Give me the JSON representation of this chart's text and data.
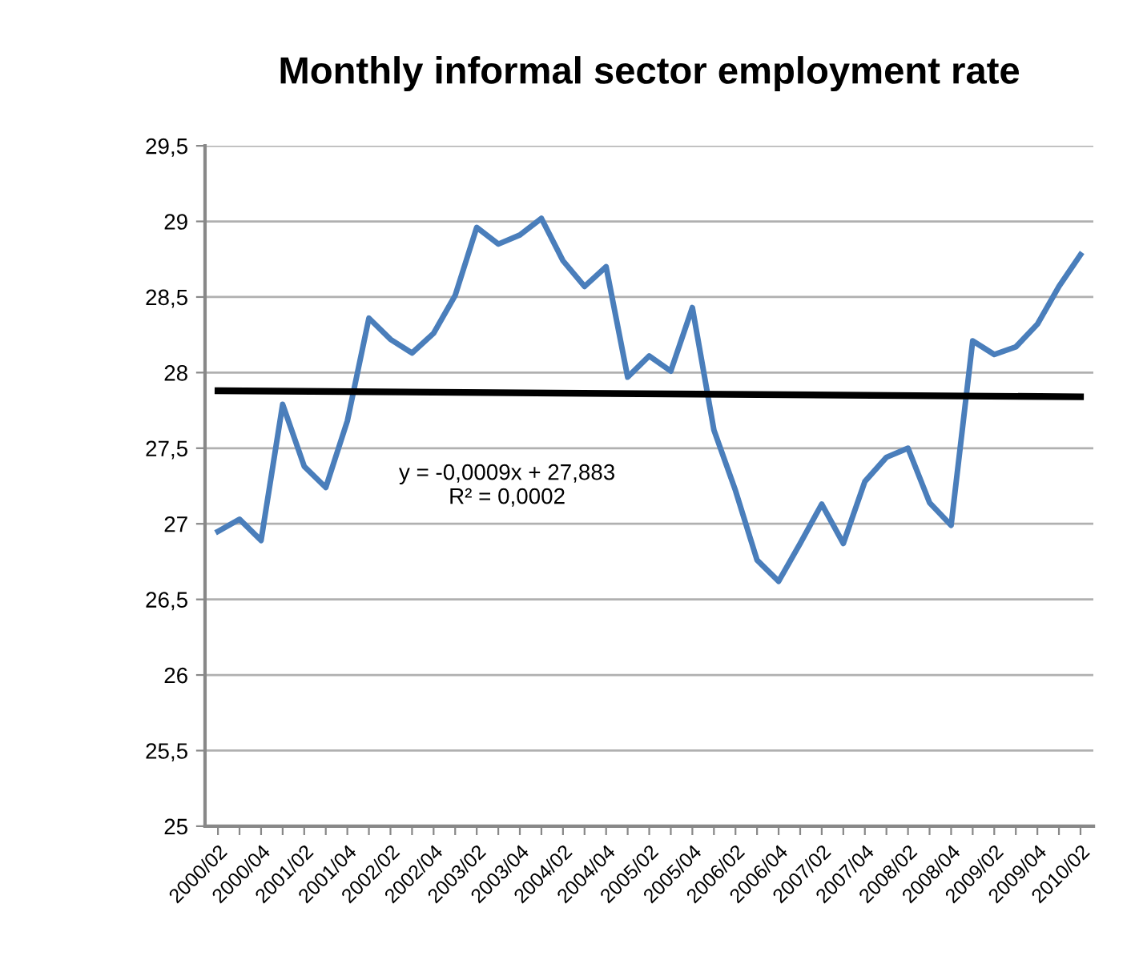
{
  "chart_data": {
    "type": "line",
    "title": "Monthly informal sector employment rate",
    "categories": [
      "2000/02",
      null,
      "2000/04",
      null,
      "2001/02",
      null,
      "2001/04",
      null,
      "2002/02",
      null,
      "2002/04",
      null,
      "2003/02",
      null,
      "2003/04",
      null,
      "2004/02",
      null,
      "2004/04",
      null,
      "2005/02",
      null,
      "2005/04",
      null,
      "2006/02",
      null,
      "2006/04",
      null,
      "2007/02",
      null,
      "2007/04",
      null,
      "2008/02",
      null,
      "2008/04",
      null,
      "2009/02",
      null,
      "2009/04",
      null,
      "2010/02"
    ],
    "series": [
      {
        "color": "#4a7ebb",
        "values": [
          26.95,
          27.03,
          26.89,
          27.79,
          27.38,
          27.24,
          27.68,
          28.36,
          28.22,
          28.13,
          28.26,
          28.51,
          28.96,
          28.85,
          28.91,
          29.02,
          28.74,
          28.57,
          28.7,
          27.97,
          28.11,
          28.01,
          28.43,
          27.62,
          27.22,
          26.76,
          26.62,
          26.87,
          27.13,
          26.87,
          27.28,
          27.44,
          27.5,
          27.14,
          26.99,
          28.21,
          28.12,
          28.17,
          28.32,
          28.57,
          28.78
        ]
      },
      {
        "type": "line",
        "color": "#000000",
        "x": [
          "2000/02",
          "2010/02"
        ],
        "values": [
          27.88,
          27.84
        ]
      }
    ],
    "ylim": [
      25,
      29.5
    ],
    "yticks": [
      {
        "value": 25,
        "label": "25"
      },
      {
        "value": 25.5,
        "label": "25,5"
      },
      {
        "value": 26,
        "label": "26"
      },
      {
        "value": 26.5,
        "label": "26,5"
      },
      {
        "value": 27,
        "label": "27"
      },
      {
        "value": 27.5,
        "label": "27,5"
      },
      {
        "value": 28,
        "label": "28"
      },
      {
        "value": 28.5,
        "label": "28,5"
      },
      {
        "value": 29,
        "label": "29"
      },
      {
        "value": 29.5,
        "label": "29,5"
      }
    ],
    "grid": "y",
    "annotations": [
      "y = -0,0009x + 27,883\nR² = 0,0002"
    ]
  }
}
